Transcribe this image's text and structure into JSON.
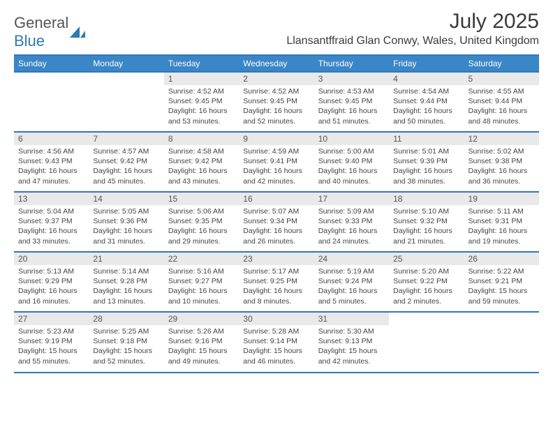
{
  "logo": {
    "word1": "General",
    "word2": "Blue"
  },
  "title": "July 2025",
  "location": "Llansantffraid Glan Conwy, Wales, United Kingdom",
  "colors": {
    "accent": "#3a86c6",
    "rule": "#2f79b9",
    "daynum_bg": "#e9e9e9"
  },
  "day_headers": [
    "Sunday",
    "Monday",
    "Tuesday",
    "Wednesday",
    "Thursday",
    "Friday",
    "Saturday"
  ],
  "weeks": [
    [
      null,
      null,
      {
        "n": "1",
        "sr": "Sunrise: 4:52 AM",
        "ss": "Sunset: 9:45 PM",
        "dl": "Daylight: 16 hours and 53 minutes."
      },
      {
        "n": "2",
        "sr": "Sunrise: 4:52 AM",
        "ss": "Sunset: 9:45 PM",
        "dl": "Daylight: 16 hours and 52 minutes."
      },
      {
        "n": "3",
        "sr": "Sunrise: 4:53 AM",
        "ss": "Sunset: 9:45 PM",
        "dl": "Daylight: 16 hours and 51 minutes."
      },
      {
        "n": "4",
        "sr": "Sunrise: 4:54 AM",
        "ss": "Sunset: 9:44 PM",
        "dl": "Daylight: 16 hours and 50 minutes."
      },
      {
        "n": "5",
        "sr": "Sunrise: 4:55 AM",
        "ss": "Sunset: 9:44 PM",
        "dl": "Daylight: 16 hours and 48 minutes."
      }
    ],
    [
      {
        "n": "6",
        "sr": "Sunrise: 4:56 AM",
        "ss": "Sunset: 9:43 PM",
        "dl": "Daylight: 16 hours and 47 minutes."
      },
      {
        "n": "7",
        "sr": "Sunrise: 4:57 AM",
        "ss": "Sunset: 9:42 PM",
        "dl": "Daylight: 16 hours and 45 minutes."
      },
      {
        "n": "8",
        "sr": "Sunrise: 4:58 AM",
        "ss": "Sunset: 9:42 PM",
        "dl": "Daylight: 16 hours and 43 minutes."
      },
      {
        "n": "9",
        "sr": "Sunrise: 4:59 AM",
        "ss": "Sunset: 9:41 PM",
        "dl": "Daylight: 16 hours and 42 minutes."
      },
      {
        "n": "10",
        "sr": "Sunrise: 5:00 AM",
        "ss": "Sunset: 9:40 PM",
        "dl": "Daylight: 16 hours and 40 minutes."
      },
      {
        "n": "11",
        "sr": "Sunrise: 5:01 AM",
        "ss": "Sunset: 9:39 PM",
        "dl": "Daylight: 16 hours and 38 minutes."
      },
      {
        "n": "12",
        "sr": "Sunrise: 5:02 AM",
        "ss": "Sunset: 9:38 PM",
        "dl": "Daylight: 16 hours and 36 minutes."
      }
    ],
    [
      {
        "n": "13",
        "sr": "Sunrise: 5:04 AM",
        "ss": "Sunset: 9:37 PM",
        "dl": "Daylight: 16 hours and 33 minutes."
      },
      {
        "n": "14",
        "sr": "Sunrise: 5:05 AM",
        "ss": "Sunset: 9:36 PM",
        "dl": "Daylight: 16 hours and 31 minutes."
      },
      {
        "n": "15",
        "sr": "Sunrise: 5:06 AM",
        "ss": "Sunset: 9:35 PM",
        "dl": "Daylight: 16 hours and 29 minutes."
      },
      {
        "n": "16",
        "sr": "Sunrise: 5:07 AM",
        "ss": "Sunset: 9:34 PM",
        "dl": "Daylight: 16 hours and 26 minutes."
      },
      {
        "n": "17",
        "sr": "Sunrise: 5:09 AM",
        "ss": "Sunset: 9:33 PM",
        "dl": "Daylight: 16 hours and 24 minutes."
      },
      {
        "n": "18",
        "sr": "Sunrise: 5:10 AM",
        "ss": "Sunset: 9:32 PM",
        "dl": "Daylight: 16 hours and 21 minutes."
      },
      {
        "n": "19",
        "sr": "Sunrise: 5:11 AM",
        "ss": "Sunset: 9:31 PM",
        "dl": "Daylight: 16 hours and 19 minutes."
      }
    ],
    [
      {
        "n": "20",
        "sr": "Sunrise: 5:13 AM",
        "ss": "Sunset: 9:29 PM",
        "dl": "Daylight: 16 hours and 16 minutes."
      },
      {
        "n": "21",
        "sr": "Sunrise: 5:14 AM",
        "ss": "Sunset: 9:28 PM",
        "dl": "Daylight: 16 hours and 13 minutes."
      },
      {
        "n": "22",
        "sr": "Sunrise: 5:16 AM",
        "ss": "Sunset: 9:27 PM",
        "dl": "Daylight: 16 hours and 10 minutes."
      },
      {
        "n": "23",
        "sr": "Sunrise: 5:17 AM",
        "ss": "Sunset: 9:25 PM",
        "dl": "Daylight: 16 hours and 8 minutes."
      },
      {
        "n": "24",
        "sr": "Sunrise: 5:19 AM",
        "ss": "Sunset: 9:24 PM",
        "dl": "Daylight: 16 hours and 5 minutes."
      },
      {
        "n": "25",
        "sr": "Sunrise: 5:20 AM",
        "ss": "Sunset: 9:22 PM",
        "dl": "Daylight: 16 hours and 2 minutes."
      },
      {
        "n": "26",
        "sr": "Sunrise: 5:22 AM",
        "ss": "Sunset: 9:21 PM",
        "dl": "Daylight: 15 hours and 59 minutes."
      }
    ],
    [
      {
        "n": "27",
        "sr": "Sunrise: 5:23 AM",
        "ss": "Sunset: 9:19 PM",
        "dl": "Daylight: 15 hours and 55 minutes."
      },
      {
        "n": "28",
        "sr": "Sunrise: 5:25 AM",
        "ss": "Sunset: 9:18 PM",
        "dl": "Daylight: 15 hours and 52 minutes."
      },
      {
        "n": "29",
        "sr": "Sunrise: 5:26 AM",
        "ss": "Sunset: 9:16 PM",
        "dl": "Daylight: 15 hours and 49 minutes."
      },
      {
        "n": "30",
        "sr": "Sunrise: 5:28 AM",
        "ss": "Sunset: 9:14 PM",
        "dl": "Daylight: 15 hours and 46 minutes."
      },
      {
        "n": "31",
        "sr": "Sunrise: 5:30 AM",
        "ss": "Sunset: 9:13 PM",
        "dl": "Daylight: 15 hours and 42 minutes."
      },
      null,
      null
    ]
  ]
}
